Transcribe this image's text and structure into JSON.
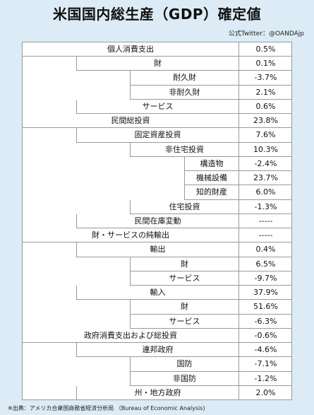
{
  "title": "米国国内総生産（GDP）確定値",
  "credit": "公式Twitter：@OANDAjp",
  "rows": [
    {
      "label": "個人消費支出",
      "value": "0.5%",
      "level": 0
    },
    {
      "label": "財",
      "value": "0.1%",
      "level": 1
    },
    {
      "label": "耐久財",
      "value": "-3.7%",
      "level": 2
    },
    {
      "label": "非耐久財",
      "value": "2.1%",
      "level": 2
    },
    {
      "label": "サービス",
      "value": "0.6%",
      "level": 1
    },
    {
      "label": "民間総投資",
      "value": "23.8%",
      "level": 0
    },
    {
      "label": "固定資産投資",
      "value": "7.6%",
      "level": 1
    },
    {
      "label": "非住宅投資",
      "value": "10.3%",
      "level": 2
    },
    {
      "label": "構造物",
      "value": "-2.4%",
      "level": 3
    },
    {
      "label": "機械設備",
      "value": "23.7%",
      "level": 3
    },
    {
      "label": "知的財産",
      "value": "6.0%",
      "level": 3
    },
    {
      "label": "住宅投資",
      "value": "-1.3%",
      "level": 2
    },
    {
      "label": "民間在庫変動",
      "value": "-----",
      "level": 1
    },
    {
      "label": "財・サービスの純輸出",
      "value": "-----",
      "level": 0
    },
    {
      "label": "輸出",
      "value": "0.4%",
      "level": 1
    },
    {
      "label": "財",
      "value": "6.5%",
      "level": 2
    },
    {
      "label": "サービス",
      "value": "-9.7%",
      "level": 2
    },
    {
      "label": "輸入",
      "value": "37.9%",
      "level": 1
    },
    {
      "label": "財",
      "value": "51.6%",
      "level": 2
    },
    {
      "label": "サービス",
      "value": "-6.3%",
      "level": 2
    },
    {
      "label": "政府消費支出および総投資",
      "value": "-0.6%",
      "level": 0
    },
    {
      "label": "連邦政府",
      "value": "-4.6%",
      "level": 1
    },
    {
      "label": "国防",
      "value": "-7.1%",
      "level": 2
    },
    {
      "label": "非国防",
      "value": "-1.2%",
      "level": 2
    },
    {
      "label": "州・地方政府",
      "value": "2.0%",
      "level": 1
    }
  ],
  "footer": "※出典：アメリカ合衆国商務省経済分析局 （Bureau of Economic Analysis)"
}
